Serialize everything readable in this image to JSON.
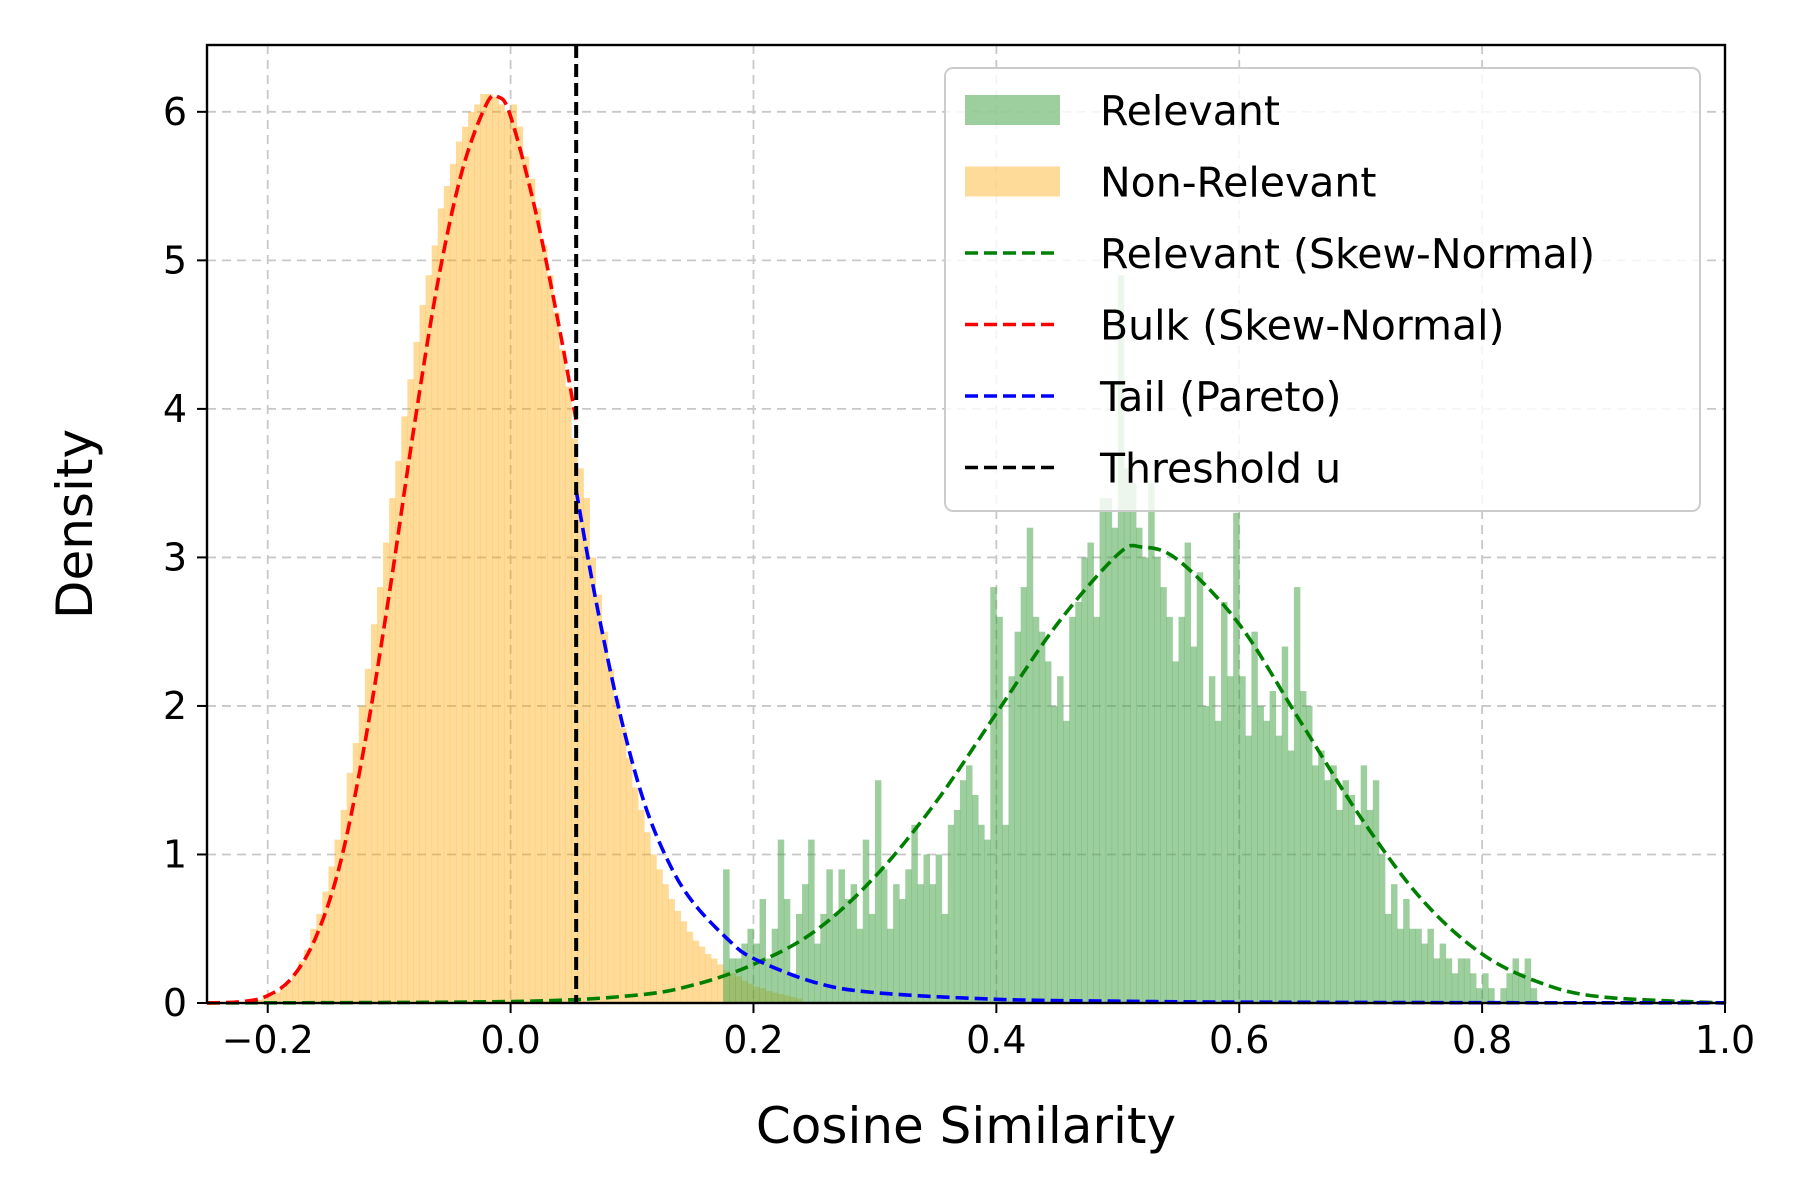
{
  "chart_data": {
    "type": "bar",
    "title": "",
    "xlabel": "Cosine Similarity",
    "ylabel": "Density",
    "xlim": [
      -0.25,
      1.0
    ],
    "ylim": [
      0,
      6.45
    ],
    "xticks": [
      -0.2,
      0.0,
      0.2,
      0.4,
      0.6,
      0.8,
      1.0
    ],
    "xtick_labels": [
      "−0.2",
      "0.0",
      "0.2",
      "0.4",
      "0.6",
      "0.8",
      "1.0"
    ],
    "yticks": [
      0,
      1,
      2,
      3,
      4,
      5,
      6
    ],
    "ytick_labels": [
      "0",
      "1",
      "2",
      "3",
      "4",
      "5",
      "6"
    ],
    "grid": true,
    "legend_position": "top-right",
    "threshold": 0.054,
    "colors": {
      "relevant": "#4CA64C",
      "non_relevant": "#FFA500",
      "relevant_fit": "#008000",
      "bulk_fit": "#FF0000",
      "tail_fit": "#0000FF",
      "threshold": "#000000"
    },
    "legend": [
      {
        "key": "relevant",
        "label": "Relevant",
        "kind": "patch"
      },
      {
        "key": "non_relevant",
        "label": "Non-Relevant",
        "kind": "patch"
      },
      {
        "key": "relevant_fit",
        "label": "Relevant (Skew-Normal)",
        "kind": "line"
      },
      {
        "key": "bulk_fit",
        "label": "Bulk (Skew-Normal)",
        "kind": "line"
      },
      {
        "key": "tail_fit",
        "label": "Tail (Pareto)",
        "kind": "line"
      },
      {
        "key": "threshold",
        "label": "Threshold u",
        "kind": "line"
      }
    ],
    "series": [
      {
        "name": "Relevant",
        "kind": "histogram",
        "bin_width": 0.005,
        "bins": [
          [
            0.175,
            0.9
          ],
          [
            0.18,
            0.3
          ],
          [
            0.185,
            0.3
          ],
          [
            0.19,
            0.4
          ],
          [
            0.195,
            0.5
          ],
          [
            0.2,
            0.4
          ],
          [
            0.205,
            0.7
          ],
          [
            0.21,
            0.3
          ],
          [
            0.215,
            0.5
          ],
          [
            0.22,
            1.1
          ],
          [
            0.225,
            0.7
          ],
          [
            0.23,
            0.2
          ],
          [
            0.235,
            0.6
          ],
          [
            0.24,
            0.8
          ],
          [
            0.245,
            1.1
          ],
          [
            0.25,
            0.4
          ],
          [
            0.255,
            0.6
          ],
          [
            0.26,
            0.9
          ],
          [
            0.265,
            0.6
          ],
          [
            0.27,
            0.9
          ],
          [
            0.275,
            0.7
          ],
          [
            0.28,
            0.8
          ],
          [
            0.285,
            0.5
          ],
          [
            0.29,
            1.1
          ],
          [
            0.295,
            0.6
          ],
          [
            0.3,
            1.5
          ],
          [
            0.305,
            0.9
          ],
          [
            0.31,
            0.5
          ],
          [
            0.315,
            0.8
          ],
          [
            0.32,
            0.7
          ],
          [
            0.325,
            0.9
          ],
          [
            0.33,
            1.2
          ],
          [
            0.335,
            0.8
          ],
          [
            0.34,
            1.0
          ],
          [
            0.345,
            0.8
          ],
          [
            0.35,
            1.0
          ],
          [
            0.355,
            0.6
          ],
          [
            0.36,
            1.2
          ],
          [
            0.365,
            1.3
          ],
          [
            0.37,
            1.5
          ],
          [
            0.375,
            1.6
          ],
          [
            0.38,
            1.4
          ],
          [
            0.385,
            1.2
          ],
          [
            0.39,
            1.1
          ],
          [
            0.395,
            2.8
          ],
          [
            0.4,
            2.6
          ],
          [
            0.405,
            1.2
          ],
          [
            0.41,
            2.2
          ],
          [
            0.415,
            2.5
          ],
          [
            0.42,
            2.8
          ],
          [
            0.425,
            3.2
          ],
          [
            0.43,
            2.6
          ],
          [
            0.435,
            2.5
          ],
          [
            0.44,
            2.3
          ],
          [
            0.445,
            2.0
          ],
          [
            0.45,
            2.2
          ],
          [
            0.455,
            1.9
          ],
          [
            0.46,
            2.6
          ],
          [
            0.465,
            2.7
          ],
          [
            0.47,
            3.0
          ],
          [
            0.475,
            3.1
          ],
          [
            0.48,
            2.6
          ],
          [
            0.485,
            3.4
          ],
          [
            0.49,
            3.4
          ],
          [
            0.495,
            3.2
          ],
          [
            0.5,
            4.9
          ],
          [
            0.505,
            3.6
          ],
          [
            0.51,
            3.5
          ],
          [
            0.515,
            3.2
          ],
          [
            0.52,
            3.0
          ],
          [
            0.525,
            3.5
          ],
          [
            0.53,
            3.0
          ],
          [
            0.535,
            2.8
          ],
          [
            0.54,
            2.6
          ],
          [
            0.545,
            2.3
          ],
          [
            0.55,
            2.6
          ],
          [
            0.555,
            3.1
          ],
          [
            0.56,
            2.4
          ],
          [
            0.565,
            2.9
          ],
          [
            0.57,
            2.0
          ],
          [
            0.575,
            2.2
          ],
          [
            0.58,
            1.9
          ],
          [
            0.585,
            2.7
          ],
          [
            0.59,
            2.2
          ],
          [
            0.595,
            3.3
          ],
          [
            0.6,
            2.2
          ],
          [
            0.605,
            1.8
          ],
          [
            0.61,
            2.5
          ],
          [
            0.615,
            2.0
          ],
          [
            0.62,
            1.9
          ],
          [
            0.625,
            2.1
          ],
          [
            0.63,
            1.8
          ],
          [
            0.635,
            2.4
          ],
          [
            0.64,
            1.7
          ],
          [
            0.645,
            2.8
          ],
          [
            0.65,
            2.1
          ],
          [
            0.655,
            2.0
          ],
          [
            0.66,
            1.6
          ],
          [
            0.665,
            1.7
          ],
          [
            0.67,
            1.5
          ],
          [
            0.675,
            1.6
          ],
          [
            0.68,
            1.3
          ],
          [
            0.685,
            1.5
          ],
          [
            0.69,
            1.4
          ],
          [
            0.695,
            1.2
          ],
          [
            0.7,
            1.6
          ],
          [
            0.705,
            1.3
          ],
          [
            0.71,
            1.5
          ],
          [
            0.715,
            1.0
          ],
          [
            0.72,
            0.6
          ],
          [
            0.725,
            0.8
          ],
          [
            0.73,
            0.5
          ],
          [
            0.735,
            0.7
          ],
          [
            0.74,
            0.5
          ],
          [
            0.745,
            0.5
          ],
          [
            0.75,
            0.4
          ],
          [
            0.755,
            0.5
          ],
          [
            0.76,
            0.3
          ],
          [
            0.765,
            0.4
          ],
          [
            0.77,
            0.3
          ],
          [
            0.775,
            0.2
          ],
          [
            0.78,
            0.3
          ],
          [
            0.785,
            0.3
          ],
          [
            0.79,
            0.2
          ],
          [
            0.795,
            0.1
          ],
          [
            0.8,
            0.2
          ],
          [
            0.805,
            0.1
          ],
          [
            0.81,
            0.0
          ],
          [
            0.815,
            0.1
          ],
          [
            0.82,
            0.2
          ],
          [
            0.825,
            0.3
          ],
          [
            0.83,
            0.2
          ],
          [
            0.835,
            0.3
          ],
          [
            0.84,
            0.1
          ]
        ]
      },
      {
        "name": "Non-Relevant",
        "kind": "histogram",
        "bin_width": 0.005,
        "bins": [
          [
            -0.21,
            0.02
          ],
          [
            -0.205,
            0.03
          ],
          [
            -0.2,
            0.05
          ],
          [
            -0.195,
            0.07
          ],
          [
            -0.19,
            0.1
          ],
          [
            -0.185,
            0.15
          ],
          [
            -0.18,
            0.2
          ],
          [
            -0.175,
            0.28
          ],
          [
            -0.17,
            0.36
          ],
          [
            -0.165,
            0.5
          ],
          [
            -0.16,
            0.6
          ],
          [
            -0.155,
            0.75
          ],
          [
            -0.15,
            0.92
          ],
          [
            -0.145,
            1.1
          ],
          [
            -0.14,
            1.3
          ],
          [
            -0.135,
            1.55
          ],
          [
            -0.13,
            1.75
          ],
          [
            -0.125,
            2.0
          ],
          [
            -0.12,
            2.25
          ],
          [
            -0.115,
            2.55
          ],
          [
            -0.11,
            2.8
          ],
          [
            -0.105,
            3.1
          ],
          [
            -0.1,
            3.4
          ],
          [
            -0.095,
            3.65
          ],
          [
            -0.09,
            3.95
          ],
          [
            -0.085,
            4.2
          ],
          [
            -0.08,
            4.45
          ],
          [
            -0.075,
            4.7
          ],
          [
            -0.07,
            4.9
          ],
          [
            -0.065,
            5.1
          ],
          [
            -0.06,
            5.35
          ],
          [
            -0.055,
            5.5
          ],
          [
            -0.05,
            5.65
          ],
          [
            -0.045,
            5.8
          ],
          [
            -0.04,
            5.9
          ],
          [
            -0.035,
            6.0
          ],
          [
            -0.03,
            6.05
          ],
          [
            -0.025,
            6.12
          ],
          [
            -0.02,
            6.12
          ],
          [
            -0.015,
            6.1
          ],
          [
            -0.01,
            6.05
          ],
          [
            -0.005,
            6.0
          ],
          [
            0.0,
            6.05
          ],
          [
            0.005,
            5.9
          ],
          [
            0.01,
            5.7
          ],
          [
            0.015,
            5.55
          ],
          [
            0.02,
            5.35
          ],
          [
            0.025,
            5.1
          ],
          [
            0.03,
            4.9
          ],
          [
            0.035,
            4.65
          ],
          [
            0.04,
            4.4
          ],
          [
            0.045,
            4.15
          ],
          [
            0.05,
            3.8
          ],
          [
            0.055,
            3.6
          ],
          [
            0.06,
            3.4
          ],
          [
            0.065,
            3.0
          ],
          [
            0.07,
            2.75
          ],
          [
            0.075,
            2.5
          ],
          [
            0.08,
            2.25
          ],
          [
            0.085,
            2.05
          ],
          [
            0.09,
            1.85
          ],
          [
            0.095,
            1.65
          ],
          [
            0.1,
            1.45
          ],
          [
            0.105,
            1.3
          ],
          [
            0.11,
            1.15
          ],
          [
            0.115,
            1.0
          ],
          [
            0.12,
            0.9
          ],
          [
            0.125,
            0.8
          ],
          [
            0.13,
            0.7
          ],
          [
            0.135,
            0.62
          ],
          [
            0.14,
            0.55
          ],
          [
            0.145,
            0.48
          ],
          [
            0.15,
            0.42
          ],
          [
            0.155,
            0.38
          ],
          [
            0.16,
            0.33
          ],
          [
            0.165,
            0.3
          ],
          [
            0.17,
            0.26
          ],
          [
            0.175,
            0.22
          ],
          [
            0.18,
            0.2
          ],
          [
            0.185,
            0.18
          ],
          [
            0.19,
            0.15
          ],
          [
            0.195,
            0.13
          ],
          [
            0.2,
            0.11
          ],
          [
            0.205,
            0.1
          ],
          [
            0.21,
            0.08
          ],
          [
            0.215,
            0.07
          ],
          [
            0.22,
            0.06
          ],
          [
            0.225,
            0.05
          ],
          [
            0.23,
            0.04
          ],
          [
            0.235,
            0.03
          ]
        ]
      },
      {
        "name": "Relevant (Skew-Normal)",
        "kind": "curve",
        "x": [
          -0.25,
          0.0,
          0.1,
          0.15,
          0.2,
          0.25,
          0.3,
          0.35,
          0.4,
          0.45,
          0.5,
          0.52,
          0.55,
          0.6,
          0.65,
          0.7,
          0.75,
          0.8,
          0.85,
          0.9,
          1.0
        ],
        "y": [
          0.0,
          0.01,
          0.05,
          0.12,
          0.26,
          0.48,
          0.85,
          1.35,
          1.95,
          2.55,
          3.02,
          3.07,
          2.98,
          2.55,
          1.9,
          1.25,
          0.7,
          0.33,
          0.13,
          0.04,
          0.0
        ]
      },
      {
        "name": "Bulk (Skew-Normal)",
        "kind": "curve",
        "x": [
          -0.25,
          -0.22,
          -0.2,
          -0.18,
          -0.16,
          -0.14,
          -0.12,
          -0.1,
          -0.08,
          -0.06,
          -0.04,
          -0.02,
          -0.01,
          0.0,
          0.02,
          0.04,
          0.054
        ],
        "y": [
          0.0,
          0.01,
          0.05,
          0.17,
          0.45,
          0.95,
          1.75,
          2.75,
          3.85,
          4.85,
          5.6,
          6.05,
          6.1,
          5.97,
          5.35,
          4.55,
          3.92
        ]
      },
      {
        "name": "Tail (Pareto)",
        "kind": "curve",
        "x": [
          0.054,
          0.07,
          0.09,
          0.11,
          0.13,
          0.15,
          0.18,
          0.2,
          0.25,
          0.3,
          0.4,
          0.5,
          0.6,
          0.8,
          1.0
        ],
        "y": [
          3.45,
          2.72,
          1.95,
          1.35,
          0.95,
          0.68,
          0.42,
          0.3,
          0.14,
          0.07,
          0.025,
          0.012,
          0.006,
          0.002,
          0.001
        ]
      },
      {
        "name": "Threshold u",
        "kind": "vline",
        "x": 0.054
      }
    ]
  }
}
